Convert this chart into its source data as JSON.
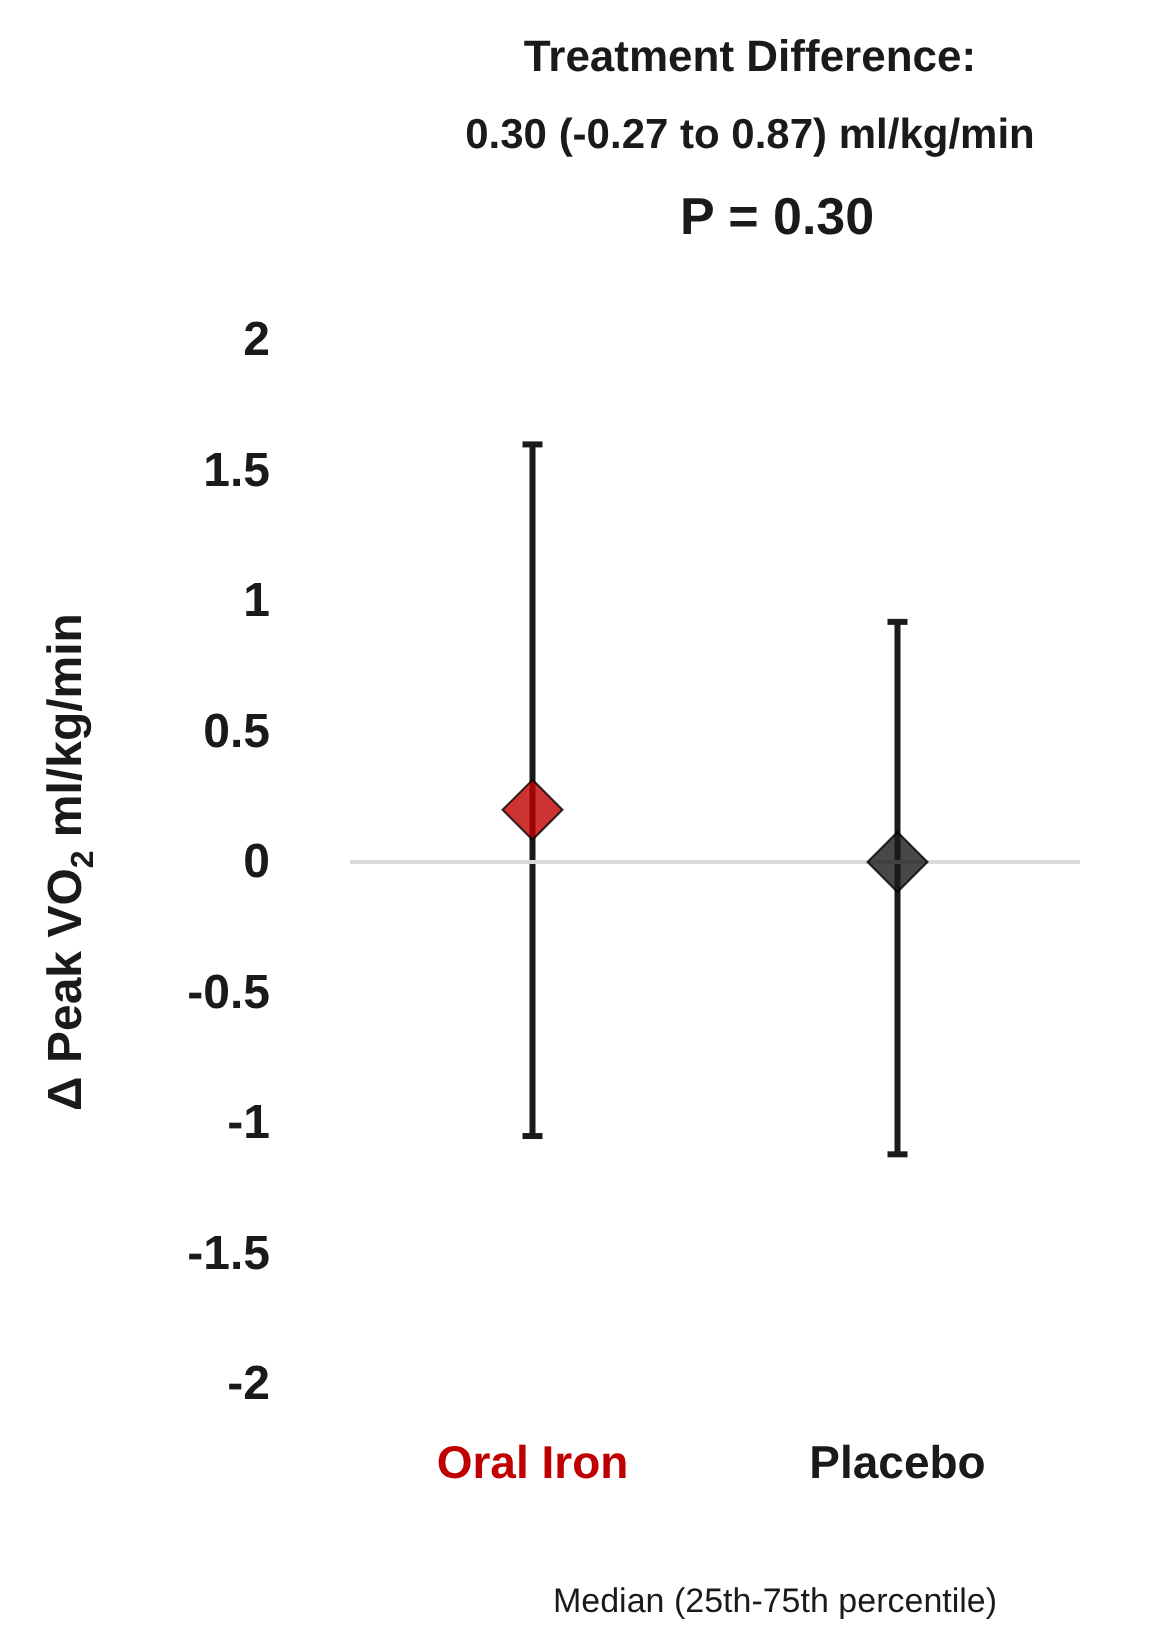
{
  "chart_data": {
    "type": "scatter",
    "title": "Treatment Difference:",
    "subtitle": "0.30 (-0.27 to 0.87) ml/kg/min",
    "annotations": [
      "P = 0.30"
    ],
    "xlabel": "Median (25th-75th percentile)",
    "ylabel": "Δ Peak VO$_{2}$ ml/kg/min",
    "categories": [
      "Oral Iron",
      "Placebo"
    ],
    "values": [
      0.2,
      0
    ],
    "colors": [
      "#c00000",
      "#1a1a1a"
    ],
    "errors": [
      [
        -1.05,
        1.6
      ],
      [
        -1.12,
        0.92
      ]
    ],
    "marker": "diamond",
    "ylim": [
      -2,
      2
    ],
    "yticks": [
      -2,
      -1.5,
      -1,
      -0.5,
      0,
      0.5,
      1,
      1.5,
      2
    ],
    "ref_lines": [
      {
        "axis": "y",
        "value": 0,
        "label": null,
        "color": "#d9d9d9"
      }
    ],
    "grid": false
  }
}
